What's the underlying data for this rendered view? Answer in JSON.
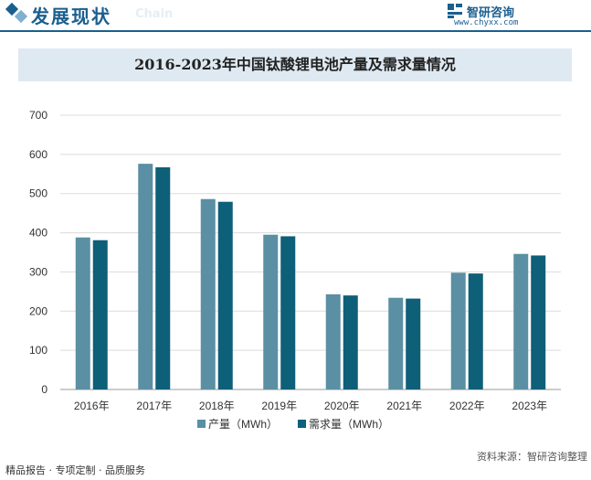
{
  "header": {
    "section_title": "发展现状",
    "section_subtitle": "Chain",
    "brand_name": "智研咨询",
    "brand_url": "www.chyxx.com"
  },
  "chart_data": {
    "type": "bar",
    "title": "2016-2023年中国钛酸锂电池产量及需求量情况",
    "categories": [
      "2016年",
      "2017年",
      "2018年",
      "2019年",
      "2020年",
      "2021年",
      "2022年",
      "2023年"
    ],
    "series": [
      {
        "name": "产量（MWh）",
        "values": [
          388,
          576,
          486,
          395,
          243,
          234,
          298,
          346
        ],
        "color": "#5b8fa3"
      },
      {
        "name": "需求量（MWh）",
        "values": [
          381,
          567,
          479,
          391,
          240,
          232,
          296,
          342
        ],
        "color": "#0e5f78"
      }
    ],
    "ylim": [
      0,
      700
    ],
    "yticks": [
      "0",
      "100",
      "200",
      "300",
      "400",
      "500",
      "600",
      "700"
    ],
    "grid": true,
    "legend_position": "bottom"
  },
  "footer": {
    "left_text": "精品报告 · 专项定制 · 品质服务",
    "right_text": "资料来源：智研咨询整理"
  }
}
